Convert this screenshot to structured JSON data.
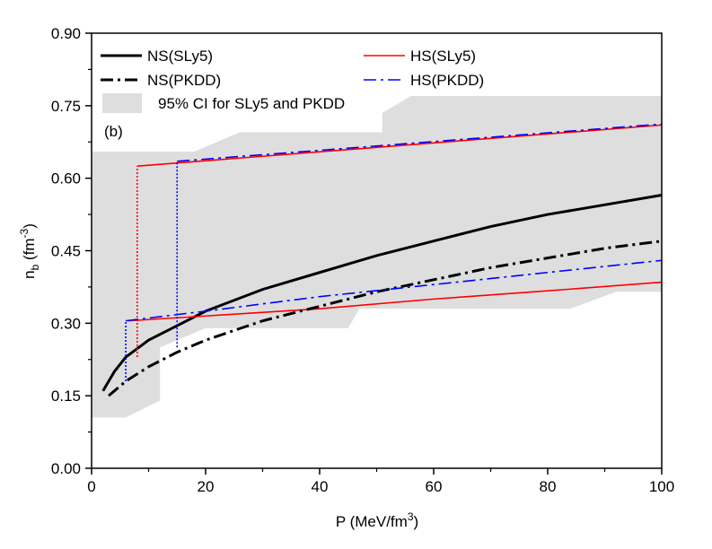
{
  "chart_data": {
    "type": "line",
    "xlabel_parts": [
      "P (MeV/fm",
      "3",
      ")"
    ],
    "ylabel_parts": [
      "n",
      "b",
      " (fm",
      "-3",
      ")"
    ],
    "annotation": "(b)",
    "xlim": [
      0,
      100
    ],
    "ylim": [
      0,
      0.9
    ],
    "xticks": [
      0,
      20,
      40,
      60,
      80,
      100
    ],
    "yticks": [
      {
        "value": 0,
        "label": "0.00"
      },
      {
        "value": 0.15,
        "label": "0.15"
      },
      {
        "value": 0.3,
        "label": "0.30"
      },
      {
        "value": 0.45,
        "label": "0.45"
      },
      {
        "value": 0.6,
        "label": "0.60"
      },
      {
        "value": 0.75,
        "label": "0.75"
      },
      {
        "value": 0.9,
        "label": "0.90"
      }
    ],
    "band": {
      "name": "95% CI for SLy5 and PKDD",
      "color": "#dedede",
      "x_upper": [
        0,
        18,
        26,
        51,
        51,
        56,
        100
      ],
      "upper": [
        0.655,
        0.655,
        0.695,
        0.695,
        0.735,
        0.77,
        0.77
      ],
      "x_lower": [
        0,
        6,
        12,
        12,
        20,
        45,
        47,
        84,
        92,
        100
      ],
      "lower": [
        0.105,
        0.105,
        0.14,
        0.25,
        0.29,
        0.29,
        0.33,
        0.33,
        0.365,
        0.365
      ]
    },
    "series": [
      {
        "name": "NS(SLy5)",
        "color": "#000000",
        "linestyle": "solid",
        "thick": true,
        "x": [
          2,
          4,
          6,
          10,
          15,
          20,
          30,
          40,
          50,
          60,
          70,
          80,
          90,
          100
        ],
        "values": [
          0.16,
          0.2,
          0.23,
          0.265,
          0.295,
          0.325,
          0.37,
          0.405,
          0.44,
          0.47,
          0.5,
          0.525,
          0.545,
          0.565
        ]
      },
      {
        "name": "HS(SLy5)",
        "color": "#ff0000",
        "linestyle": "solid",
        "thick": false,
        "x": [
          6.5,
          20,
          40,
          60,
          80,
          100,
          null,
          8,
          100
        ],
        "values": [
          0.305,
          0.315,
          0.33,
          0.35,
          0.367,
          0.385,
          null,
          0.625,
          0.71
        ],
        "transitions": [
          {
            "x": [
              8,
              8
            ],
            "values": [
              0.23,
              0.625
            ]
          }
        ]
      },
      {
        "name": "NS(PKDD)",
        "color": "#000000",
        "linestyle": "dashdot",
        "thick": true,
        "x": [
          3,
          6,
          10,
          15,
          20,
          30,
          40,
          50,
          60,
          70,
          80,
          90,
          100
        ],
        "values": [
          0.15,
          0.18,
          0.21,
          0.24,
          0.265,
          0.305,
          0.335,
          0.365,
          0.39,
          0.415,
          0.435,
          0.455,
          0.47
        ]
      },
      {
        "name": "HS(PKDD)",
        "color": "#0000ff",
        "linestyle": "dashdot",
        "thick": false,
        "x": [
          6,
          20,
          40,
          60,
          80,
          100,
          null,
          15,
          100
        ],
        "values": [
          0.305,
          0.325,
          0.355,
          0.38,
          0.405,
          0.43,
          null,
          0.635,
          0.712
        ],
        "transitions": [
          {
            "x": [
              6,
              6
            ],
            "values": [
              0.18,
              0.305
            ]
          },
          {
            "x": [
              15,
              15
            ],
            "values": [
              0.25,
              0.635
            ]
          }
        ]
      }
    ]
  }
}
